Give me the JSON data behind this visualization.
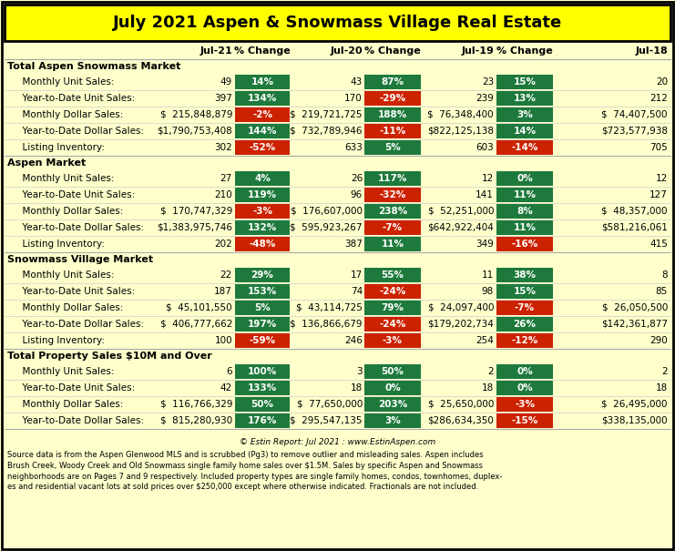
{
  "title": "July 2021 Aspen & Snowmass Village Real Estate",
  "title_bg": "#FFFF00",
  "table_bg": "#FFFFCC",
  "green": "#1E7A3C",
  "red": "#CC2200",
  "col_headers": [
    "",
    "Jul-21",
    "% Change",
    "Jul-20",
    "% Change",
    "Jul-19",
    "% Change",
    "Jul-18"
  ],
  "sections": [
    {
      "label": "Total Aspen Snowmass Market",
      "is_header": true
    },
    {
      "label": "  Monthly Unit Sales:",
      "vals": [
        "49",
        "14%",
        "43",
        "87%",
        "23",
        "15%",
        "20"
      ],
      "pct_colors": [
        "",
        "green",
        "",
        "green",
        "",
        "green",
        ""
      ]
    },
    {
      "label": "  Year-to-Date Unit Sales:",
      "vals": [
        "397",
        "134%",
        "170",
        "-29%",
        "239",
        "13%",
        "212"
      ],
      "pct_colors": [
        "",
        "green",
        "",
        "red",
        "",
        "green",
        ""
      ]
    },
    {
      "label": "  Monthly Dollar Sales:",
      "vals": [
        "$  215,848,879",
        "-2%",
        "$  219,721,725",
        "188%",
        "$  76,348,400",
        "3%",
        "$  74,407,500"
      ],
      "pct_colors": [
        "",
        "red",
        "",
        "green",
        "",
        "green",
        ""
      ]
    },
    {
      "label": "  Year-to-Date Dollar Sales:",
      "vals": [
        "$1,790,753,408",
        "144%",
        "$  732,789,946",
        "-11%",
        "$822,125,138",
        "14%",
        "$723,577,938"
      ],
      "pct_colors": [
        "",
        "green",
        "",
        "red",
        "",
        "green",
        ""
      ]
    },
    {
      "label": "  Listing Inventory:",
      "vals": [
        "302",
        "-52%",
        "633",
        "5%",
        "603",
        "-14%",
        "705"
      ],
      "pct_colors": [
        "",
        "red",
        "",
        "green",
        "",
        "red",
        ""
      ]
    },
    {
      "label": "Aspen Market",
      "is_header": true
    },
    {
      "label": "  Monthly Unit Sales:",
      "vals": [
        "27",
        "4%",
        "26",
        "117%",
        "12",
        "0%",
        "12"
      ],
      "pct_colors": [
        "",
        "green",
        "",
        "green",
        "",
        "green",
        ""
      ]
    },
    {
      "label": "  Year-to-Date Unit Sales:",
      "vals": [
        "210",
        "119%",
        "96",
        "-32%",
        "141",
        "11%",
        "127"
      ],
      "pct_colors": [
        "",
        "green",
        "",
        "red",
        "",
        "green",
        ""
      ]
    },
    {
      "label": "  Monthly Dollar Sales:",
      "vals": [
        "$  170,747,329",
        "-3%",
        "$  176,607,000",
        "238%",
        "$  52,251,000",
        "8%",
        "$  48,357,000"
      ],
      "pct_colors": [
        "",
        "red",
        "",
        "green",
        "",
        "green",
        ""
      ]
    },
    {
      "label": "  Year-to-Date Dollar Sales:",
      "vals": [
        "$1,383,975,746",
        "132%",
        "$  595,923,267",
        "-7%",
        "$642,922,404",
        "11%",
        "$581,216,061"
      ],
      "pct_colors": [
        "",
        "green",
        "",
        "red",
        "",
        "green",
        ""
      ]
    },
    {
      "label": "  Listing Inventory:",
      "vals": [
        "202",
        "-48%",
        "387",
        "11%",
        "349",
        "-16%",
        "415"
      ],
      "pct_colors": [
        "",
        "red",
        "",
        "green",
        "",
        "red",
        ""
      ]
    },
    {
      "label": "Snowmass Village Market",
      "is_header": true
    },
    {
      "label": "  Monthly Unit Sales:",
      "vals": [
        "22",
        "29%",
        "17",
        "55%",
        "11",
        "38%",
        "8"
      ],
      "pct_colors": [
        "",
        "green",
        "",
        "green",
        "",
        "green",
        ""
      ]
    },
    {
      "label": "  Year-to-Date Unit Sales:",
      "vals": [
        "187",
        "153%",
        "74",
        "-24%",
        "98",
        "15%",
        "85"
      ],
      "pct_colors": [
        "",
        "green",
        "",
        "red",
        "",
        "green",
        ""
      ]
    },
    {
      "label": "  Monthly Dollar Sales:",
      "vals": [
        "$  45,101,550",
        "5%",
        "$  43,114,725",
        "79%",
        "$  24,097,400",
        "-7%",
        "$  26,050,500"
      ],
      "pct_colors": [
        "",
        "green",
        "",
        "green",
        "",
        "red",
        ""
      ]
    },
    {
      "label": "  Year-to-Date Dollar Sales:",
      "vals": [
        "$  406,777,662",
        "197%",
        "$  136,866,679",
        "-24%",
        "$179,202,734",
        "26%",
        "$142,361,877"
      ],
      "pct_colors": [
        "",
        "green",
        "",
        "red",
        "",
        "green",
        ""
      ]
    },
    {
      "label": "  Listing Inventory:",
      "vals": [
        "100",
        "-59%",
        "246",
        "-3%",
        "254",
        "-12%",
        "290"
      ],
      "pct_colors": [
        "",
        "red",
        "",
        "red",
        "",
        "red",
        ""
      ]
    },
    {
      "label": "Total Property Sales $10M and Over",
      "is_header": true
    },
    {
      "label": "  Monthly Unit Sales:",
      "vals": [
        "6",
        "100%",
        "3",
        "50%",
        "2",
        "0%",
        "2"
      ],
      "pct_colors": [
        "",
        "green",
        "",
        "green",
        "",
        "green",
        ""
      ]
    },
    {
      "label": "  Year-to-Date Unit Sales:",
      "vals": [
        "42",
        "133%",
        "18",
        "0%",
        "18",
        "0%",
        "18"
      ],
      "pct_colors": [
        "",
        "green",
        "",
        "green",
        "",
        "green",
        ""
      ]
    },
    {
      "label": "  Monthly Dollar Sales:",
      "vals": [
        "$  116,766,329",
        "50%",
        "$  77,650,000",
        "203%",
        "$  25,650,000",
        "-3%",
        "$  26,495,000"
      ],
      "pct_colors": [
        "",
        "green",
        "",
        "green",
        "",
        "red",
        ""
      ]
    },
    {
      "label": "  Year-to-Date Dollar Sales:",
      "vals": [
        "$  815,280,930",
        "176%",
        "$  295,547,135",
        "3%",
        "$286,634,350",
        "-15%",
        "$338,135,000"
      ],
      "pct_colors": [
        "",
        "green",
        "",
        "green",
        "",
        "red",
        ""
      ]
    }
  ],
  "footer_credit": "© Estin Report: Jul 2021 : www.EstinAspen.com",
  "footer_note": "Source data is from the Aspen Glenwood MLS and is scrubbed (Pg3) to remove outlier and misleading sales. Aspen includes\nBrush Creek, Woody Creek and Old Snowmass single family home sales over $1.5M. Sales by specific Aspen and Snowmass\nneighborhoods are on Pages 7 and 9 respectively. Included property types are single family homes, condos, townhomes, duplex-\nes and residential vacant lots at sold prices over $250,000 except where otherwise indicated. Fractionals are not included."
}
